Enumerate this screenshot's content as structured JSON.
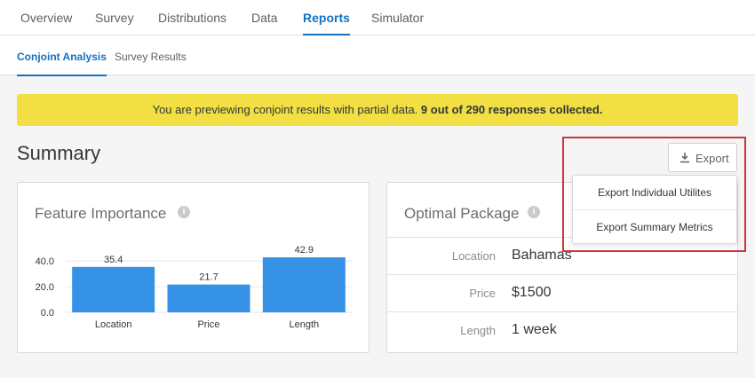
{
  "topnav": {
    "tabs": [
      {
        "label": "Overview"
      },
      {
        "label": "Survey"
      },
      {
        "label": "Distributions"
      },
      {
        "label": "Data"
      },
      {
        "label": "Reports",
        "active": true
      },
      {
        "label": "Simulator"
      }
    ]
  },
  "subnav": {
    "tabs": [
      {
        "label": "Conjoint Analysis",
        "active": true
      },
      {
        "label": "Survey Results"
      }
    ]
  },
  "banner": {
    "text": "You are previewing conjoint results with partial data.",
    "bold": "9 out of 290 responses collected.",
    "color": "#f1df44"
  },
  "summary": {
    "title": "Summary"
  },
  "export": {
    "label": "Export",
    "icon": "download-icon",
    "menu": [
      {
        "label": "Export Individual Utilites"
      },
      {
        "label": "Export Summary Metrics"
      }
    ]
  },
  "feature_importance": {
    "title": "Feature Importance",
    "info_icon": "info-icon"
  },
  "chart_data": {
    "type": "bar",
    "categories": [
      "Location",
      "Price",
      "Length"
    ],
    "values": [
      35.4,
      21.7,
      42.9
    ],
    "value_labels": [
      "35.4",
      "21.7",
      "42.9"
    ],
    "ytick_labels": [
      "40.0",
      "20.0",
      "0.0"
    ],
    "yticks": [
      40,
      20,
      0
    ],
    "ylim": [
      0,
      42.9
    ],
    "bar_color": "#3592e6",
    "grid": true
  },
  "optimal_package": {
    "title": "Optimal Package",
    "info_icon": "info-icon",
    "rows": [
      {
        "label": "Location",
        "value": "Bahamas"
      },
      {
        "label": "Price",
        "value": "$1500"
      },
      {
        "label": "Length",
        "value": "1 week"
      }
    ]
  },
  "colors": {
    "accent": "#1472c0",
    "highlight": "#d0333a"
  }
}
